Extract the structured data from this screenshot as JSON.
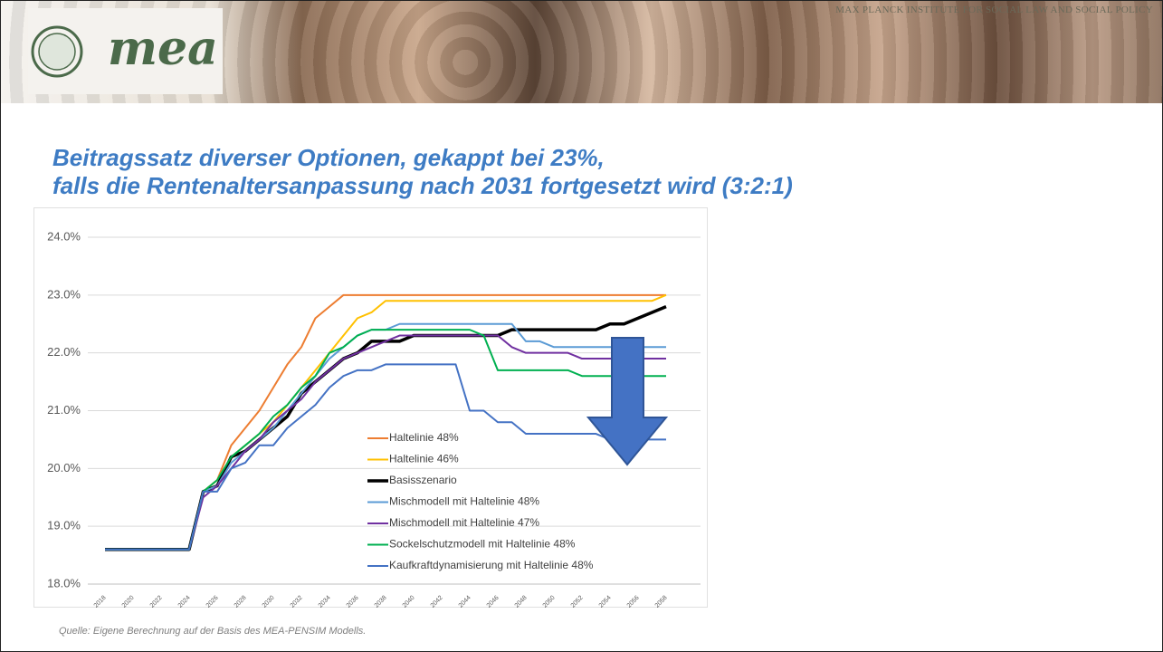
{
  "header": {
    "logo": "mea",
    "institute": "MAX PLANCK INSTITUTE FOR SOCIAL LAW AND SOCIAL POLICY"
  },
  "title": [
    "Beitragssatz diverser Optionen, gekappt bei 23%,",
    "falls die Rentenaltersanpassung nach 2031 fortgesetzt wird (3:2:1)"
  ],
  "source": "Quelle: Eigene Berechnung auf der Basis des MEA-PENSIM Modells.",
  "chart_data": {
    "type": "line",
    "x": [
      2018,
      2019,
      2020,
      2021,
      2022,
      2023,
      2024,
      2025,
      2026,
      2027,
      2028,
      2029,
      2030,
      2031,
      2032,
      2033,
      2034,
      2035,
      2036,
      2037,
      2038,
      2039,
      2040,
      2041,
      2042,
      2043,
      2044,
      2045,
      2046,
      2047,
      2048,
      2049,
      2050,
      2051,
      2052,
      2053,
      2054,
      2055,
      2056,
      2057,
      2058
    ],
    "xlim": [
      2018,
      2058
    ],
    "xticks": [
      2018,
      2020,
      2022,
      2024,
      2026,
      2028,
      2030,
      2032,
      2034,
      2036,
      2038,
      2040,
      2042,
      2044,
      2046,
      2048,
      2050,
      2052,
      2054,
      2056,
      2058
    ],
    "ylim": [
      18,
      24
    ],
    "yticks": [
      {
        "value": 18,
        "label": "18.0%"
      },
      {
        "value": 19,
        "label": "19.0%"
      },
      {
        "value": 20,
        "label": "20.0%"
      },
      {
        "value": 21,
        "label": "21.0%"
      },
      {
        "value": 22,
        "label": "22.0%"
      },
      {
        "value": 23,
        "label": "23.0%"
      },
      {
        "value": 24,
        "label": "24.0%"
      }
    ],
    "grid": true,
    "series": [
      {
        "name": "Haltelinie 48%",
        "color": "#ed7d31",
        "values": [
          18.6,
          18.6,
          18.6,
          18.6,
          18.6,
          18.6,
          18.6,
          19.6,
          19.8,
          20.4,
          20.7,
          21.0,
          21.4,
          21.8,
          22.1,
          22.6,
          22.8,
          23.0,
          23.0,
          23.0,
          23.0,
          23.0,
          23.0,
          23.0,
          23.0,
          23.0,
          23.0,
          23.0,
          23.0,
          23.0,
          23.0,
          23.0,
          23.0,
          23.0,
          23.0,
          23.0,
          23.0,
          23.0,
          23.0,
          23.0,
          23.0
        ]
      },
      {
        "name": "Haltelinie 46%",
        "color": "#ffc000",
        "values": [
          18.6,
          18.6,
          18.6,
          18.6,
          18.6,
          18.6,
          18.6,
          19.6,
          19.8,
          20.2,
          20.4,
          20.6,
          20.8,
          21.1,
          21.4,
          21.7,
          22.0,
          22.3,
          22.6,
          22.7,
          22.9,
          22.9,
          22.9,
          22.9,
          22.9,
          22.9,
          22.9,
          22.9,
          22.9,
          22.9,
          22.9,
          22.9,
          22.9,
          22.9,
          22.9,
          22.9,
          22.9,
          22.9,
          22.9,
          22.9,
          23.0
        ]
      },
      {
        "name": "Basisszenario",
        "color": "#000000",
        "values": [
          18.6,
          18.6,
          18.6,
          18.6,
          18.6,
          18.6,
          18.6,
          19.6,
          19.7,
          20.2,
          20.3,
          20.5,
          20.7,
          20.9,
          21.3,
          21.5,
          21.7,
          21.9,
          22.0,
          22.2,
          22.2,
          22.2,
          22.3,
          22.3,
          22.3,
          22.3,
          22.3,
          22.3,
          22.3,
          22.4,
          22.4,
          22.4,
          22.4,
          22.4,
          22.4,
          22.4,
          22.5,
          22.5,
          22.6,
          22.7,
          22.8
        ]
      },
      {
        "name": "Mischmodell mit Haltelinie 48%",
        "color": "#5b9bd5",
        "values": [
          18.6,
          18.6,
          18.6,
          18.6,
          18.6,
          18.6,
          18.6,
          19.6,
          19.7,
          20.1,
          20.3,
          20.5,
          20.7,
          21.0,
          21.3,
          21.6,
          21.9,
          22.1,
          22.3,
          22.4,
          22.4,
          22.5,
          22.5,
          22.5,
          22.5,
          22.5,
          22.5,
          22.5,
          22.5,
          22.5,
          22.2,
          22.2,
          22.1,
          22.1,
          22.1,
          22.1,
          22.1,
          22.1,
          22.1,
          22.1,
          22.1
        ]
      },
      {
        "name": "Mischmodell mit Haltelinie 47%",
        "color": "#7030a0",
        "values": [
          18.6,
          18.6,
          18.6,
          18.6,
          18.6,
          18.6,
          18.6,
          19.5,
          19.7,
          20.0,
          20.3,
          20.5,
          20.8,
          21.0,
          21.2,
          21.5,
          21.7,
          21.9,
          22.0,
          22.1,
          22.2,
          22.3,
          22.3,
          22.3,
          22.3,
          22.3,
          22.3,
          22.3,
          22.3,
          22.1,
          22.0,
          22.0,
          22.0,
          22.0,
          21.9,
          21.9,
          21.9,
          21.9,
          21.9,
          21.9,
          21.9
        ]
      },
      {
        "name": "Sockelschutzmodell mit Haltelinie 48%",
        "color": "#00b050",
        "values": [
          18.6,
          18.6,
          18.6,
          18.6,
          18.6,
          18.6,
          18.6,
          19.6,
          19.8,
          20.2,
          20.4,
          20.6,
          20.9,
          21.1,
          21.4,
          21.6,
          22.0,
          22.1,
          22.3,
          22.4,
          22.4,
          22.4,
          22.4,
          22.4,
          22.4,
          22.4,
          22.4,
          22.3,
          21.7,
          21.7,
          21.7,
          21.7,
          21.7,
          21.7,
          21.6,
          21.6,
          21.6,
          21.6,
          21.6,
          21.6,
          21.6
        ]
      },
      {
        "name": "Kaufkraftdynamisierung mit Haltelinie 48%",
        "color": "#4472c4",
        "values": [
          18.6,
          18.6,
          18.6,
          18.6,
          18.6,
          18.6,
          18.6,
          19.6,
          19.6,
          20.0,
          20.1,
          20.4,
          20.4,
          20.7,
          20.9,
          21.1,
          21.4,
          21.6,
          21.7,
          21.7,
          21.8,
          21.8,
          21.8,
          21.8,
          21.8,
          21.8,
          21.0,
          21.0,
          20.8,
          20.8,
          20.6,
          20.6,
          20.6,
          20.6,
          20.6,
          20.6,
          20.5,
          20.5,
          20.5,
          20.5,
          20.5
        ]
      }
    ]
  }
}
